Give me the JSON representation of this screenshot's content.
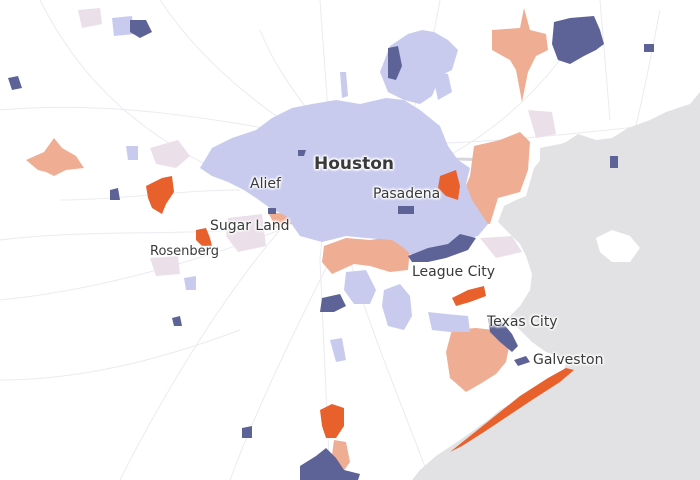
{
  "map": {
    "colors": {
      "water": "#e2e2e4",
      "light_blue": "#c8cbee",
      "dark_blue": "#5e6397",
      "light_orange": "#efad93",
      "orange": "#e8612d",
      "faint_pink": "#ebe0ea",
      "road": "#e9e9ef"
    },
    "cities": [
      {
        "id": "houston",
        "name": "Houston"
      },
      {
        "id": "alief",
        "name": "Alief"
      },
      {
        "id": "pasadena",
        "name": "Pasadena"
      },
      {
        "id": "sugar-land",
        "name": "Sugar Land"
      },
      {
        "id": "rosenberg",
        "name": "Rosenberg"
      },
      {
        "id": "league-city",
        "name": "League City"
      },
      {
        "id": "texas-city",
        "name": "Texas City"
      },
      {
        "id": "galveston",
        "name": "Galveston"
      }
    ]
  }
}
